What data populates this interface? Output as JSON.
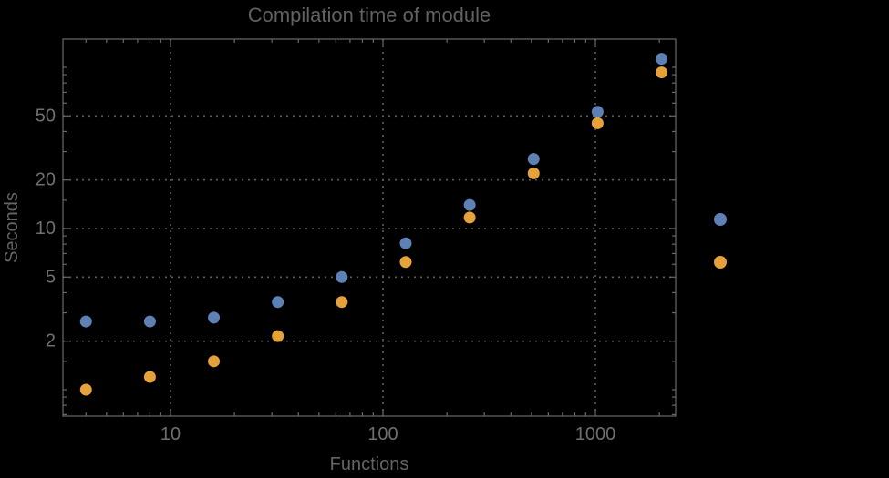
{
  "title": "Compilation time of module",
  "colors": {
    "background": "#000000",
    "frame": "#696969",
    "gridline": "#5c5c5c",
    "tick_text": "#6f6f6f",
    "label_text": "#646464",
    "series_blue": "#5e81b5",
    "series_orange": "#e5a23b"
  },
  "chart_data": {
    "type": "scatter",
    "title": "Compilation time of module",
    "xlabel": "Functions",
    "ylabel": "Seconds",
    "x_scale": "log",
    "y_scale": "log",
    "xlim": [
      3.1,
      2400
    ],
    "ylim": [
      0.69,
      150
    ],
    "x_ticks": [
      10,
      100,
      1000
    ],
    "y_ticks": [
      2,
      5,
      10,
      20,
      50
    ],
    "x_minor_ticks": [
      4,
      5,
      6,
      7,
      8,
      9,
      20,
      30,
      40,
      50,
      60,
      70,
      80,
      90,
      200,
      300,
      400,
      500,
      600,
      700,
      800,
      900,
      2000
    ],
    "y_minor_ticks": [
      0.7,
      0.8,
      0.9,
      1,
      1.5,
      3,
      4,
      6,
      7,
      8,
      9,
      15,
      30,
      40,
      60,
      70,
      80,
      90,
      100
    ],
    "grid": "dotted lines at major ticks, both axes",
    "legend_position": "right-outside",
    "x": [
      4,
      8,
      16,
      32,
      64,
      128,
      256,
      512,
      1024,
      2048
    ],
    "series": [
      {
        "name": "",
        "marker": "disk",
        "color": "#5e81b5",
        "values": [
          2.65,
          2.65,
          2.8,
          3.5,
          5.0,
          8.1,
          14,
          27,
          53,
          113
        ]
      },
      {
        "name": "",
        "marker": "disk",
        "color": "#e5a23b",
        "values": [
          1.0,
          1.2,
          1.5,
          2.15,
          3.5,
          6.2,
          11.7,
          22,
          45,
          93
        ]
      }
    ],
    "legend": [
      {
        "label": "",
        "color": "#5e81b5"
      },
      {
        "label": "",
        "color": "#e5a23b"
      }
    ]
  }
}
